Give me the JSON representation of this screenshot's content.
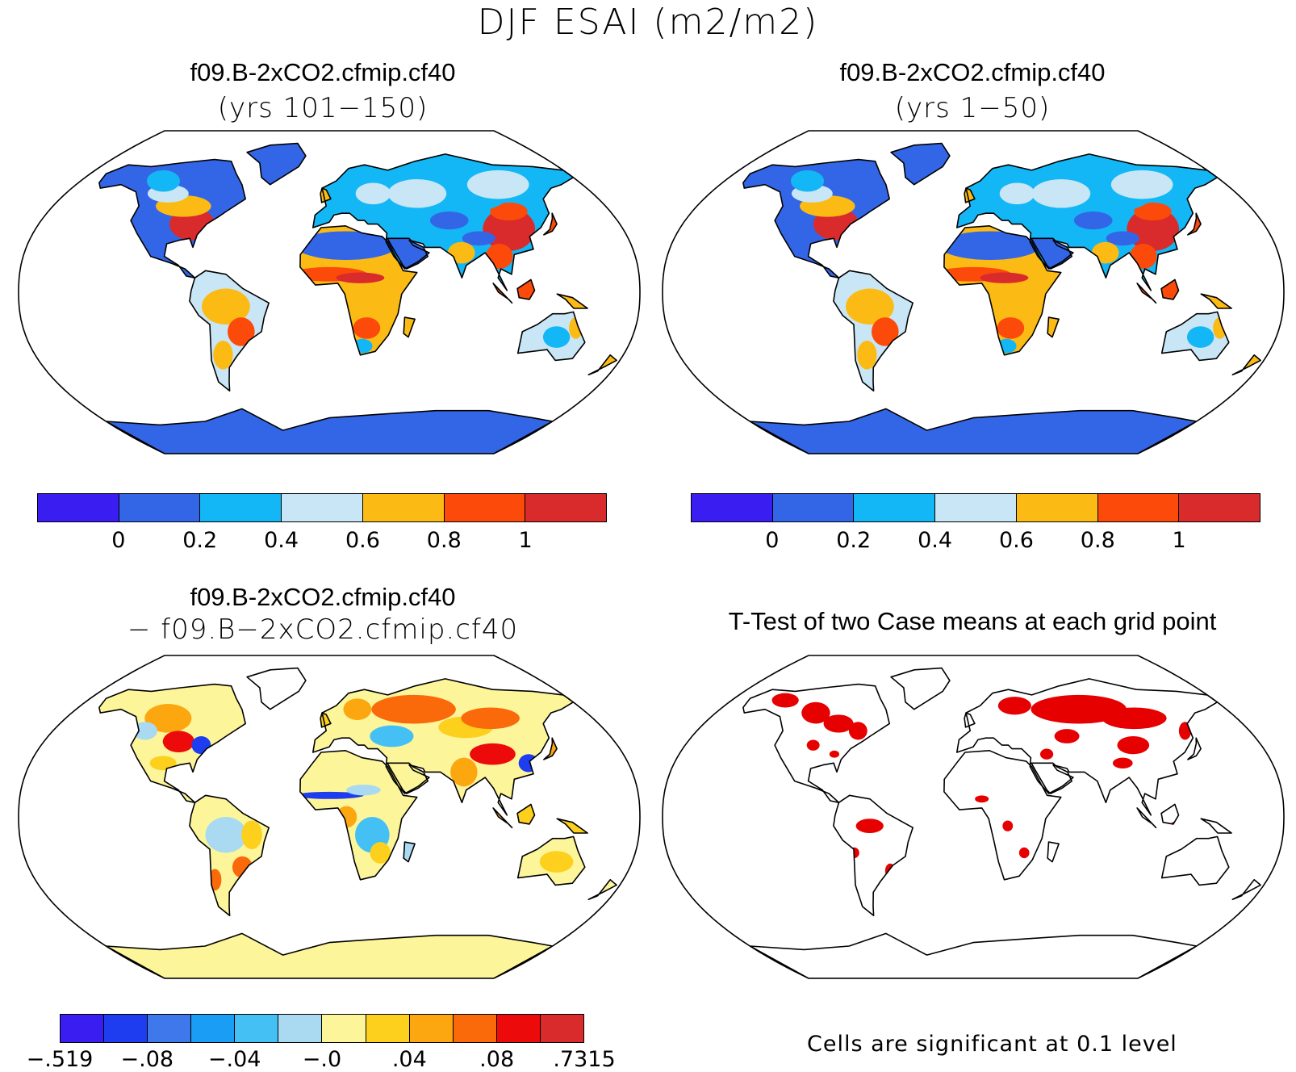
{
  "title": "DJF ESAI (m2/m2)",
  "panels": {
    "top_left": {
      "title": "f09.B-2xCO2.cfmip.cf40",
      "subtitle": "(yrs 101−150)"
    },
    "top_right": {
      "title": "f09.B-2xCO2.cfmip.cf40",
      "subtitle": "(yrs 1−50)"
    },
    "bottom_left": {
      "title": "f09.B-2xCO2.cfmip.cf40",
      "subtitle": "− f09.B−2xCO2.cfmip.cf40"
    },
    "bottom_right": {
      "title": "T-Test of two Case means at each grid point",
      "note": "Cells are significant at 0.1 level"
    }
  },
  "colorbar_mean": {
    "colors": [
      "#3a1df0",
      "#3366e6",
      "#13b7f5",
      "#c8e6f5",
      "#fbbb14",
      "#fc4a0a",
      "#d92b2b"
    ],
    "labels": [
      "0",
      "0.2",
      "0.4",
      "0.6",
      "0.8",
      "1"
    ]
  },
  "colorbar_diff": {
    "colors": [
      "#3a1df0",
      "#1e3cf0",
      "#3f78ea",
      "#1a9ef5",
      "#45c0f5",
      "#a9daf2",
      "#fcf59a",
      "#fcd01c",
      "#fca70f",
      "#fa6a0a",
      "#ec0a0a",
      "#d92b2b"
    ],
    "labels": [
      "−.519",
      "−.08",
      "−.04",
      "−.0",
      ".04",
      ".08",
      ".7315"
    ]
  },
  "ttest_color": "#e60000"
}
